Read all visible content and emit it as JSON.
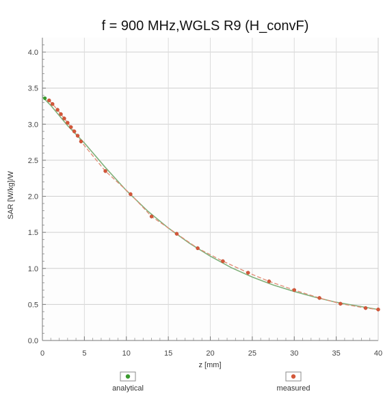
{
  "chart_data": {
    "type": "scatter",
    "title": "f = 900 MHz,WGLS R9 (H_convF)",
    "xlabel": "z [mm]",
    "ylabel": "SAR [W/kg]/W",
    "xlim": [
      0,
      40
    ],
    "ylim": [
      0,
      4.2
    ],
    "x_ticks": [
      "0",
      "5",
      "10",
      "15",
      "20",
      "25",
      "30",
      "35",
      "40"
    ],
    "y_ticks": [
      "0.0",
      "0.5",
      "1.0",
      "1.5",
      "2.0",
      "2.5",
      "3.0",
      "3.5",
      "4.0"
    ],
    "grid": true,
    "legend_position": "bottom",
    "series": [
      {
        "name": "analytical",
        "color": "#3a9a2e",
        "x": [
          0.0,
          1.0,
          2.0,
          3.0,
          4.0,
          5.0,
          7.5,
          10.0,
          12.5,
          15.0,
          17.5,
          20.0,
          22.5,
          25.0,
          27.5,
          30.0,
          32.5,
          35.0,
          37.5,
          40.0
        ],
        "y": [
          3.38,
          3.26,
          3.12,
          2.98,
          2.86,
          2.74,
          2.4,
          2.08,
          1.8,
          1.56,
          1.35,
          1.17,
          1.01,
          0.88,
          0.77,
          0.68,
          0.6,
          0.53,
          0.48,
          0.43
        ]
      },
      {
        "name": "measured",
        "color": "#d4583a",
        "x": [
          0.8,
          1.2,
          1.8,
          2.2,
          2.6,
          3.0,
          3.4,
          3.8,
          4.2,
          4.6,
          7.5,
          10.5,
          13.0,
          16.0,
          18.5,
          21.5,
          24.5,
          27.0,
          30.0,
          33.0,
          35.5,
          38.5,
          40.0
        ],
        "y": [
          3.33,
          3.28,
          3.2,
          3.14,
          3.08,
          3.02,
          2.96,
          2.9,
          2.84,
          2.76,
          2.35,
          2.03,
          1.72,
          1.48,
          1.28,
          1.1,
          0.94,
          0.82,
          0.7,
          0.59,
          0.51,
          0.45,
          0.43
        ]
      }
    ]
  }
}
